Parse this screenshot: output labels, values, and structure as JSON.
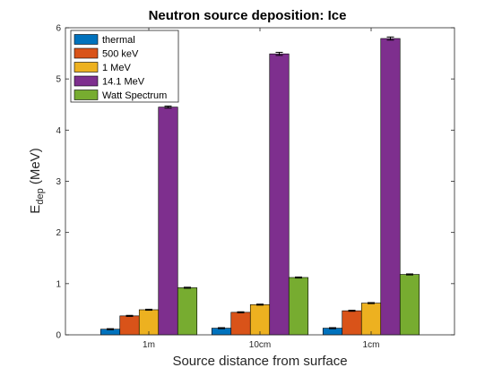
{
  "chart_data": {
    "type": "bar",
    "title": "Neutron source deposition: Ice",
    "xlabel": "Source distance from surface",
    "ylabel": {
      "main": "E",
      "sub": "dep",
      "unit": " (MeV)"
    },
    "categories": [
      "1m",
      "10cm",
      "1cm"
    ],
    "ylim": [
      0,
      6
    ],
    "yticks": [
      "0",
      "1",
      "2",
      "3",
      "4",
      "5",
      "6"
    ],
    "grid": false,
    "legend_position": "top-left",
    "series": [
      {
        "name": "thermal",
        "color": "#0072BD",
        "values": [
          0.11,
          0.13,
          0.13
        ],
        "errors": [
          0.01,
          0.01,
          0.01
        ]
      },
      {
        "name": "500 keV",
        "color": "#D95319",
        "values": [
          0.37,
          0.44,
          0.47
        ],
        "errors": [
          0.01,
          0.01,
          0.01
        ]
      },
      {
        "name": "1 MeV",
        "color": "#EDB120",
        "values": [
          0.49,
          0.59,
          0.62
        ],
        "errors": [
          0.01,
          0.01,
          0.01
        ]
      },
      {
        "name": "14.1 MeV",
        "color": "#7E2F8E",
        "values": [
          4.45,
          5.49,
          5.79
        ],
        "errors": [
          0.02,
          0.03,
          0.03
        ]
      },
      {
        "name": "Watt Spectrum",
        "color": "#77AC30",
        "values": [
          0.92,
          1.12,
          1.18
        ],
        "errors": [
          0.01,
          0.01,
          0.01
        ]
      }
    ]
  }
}
